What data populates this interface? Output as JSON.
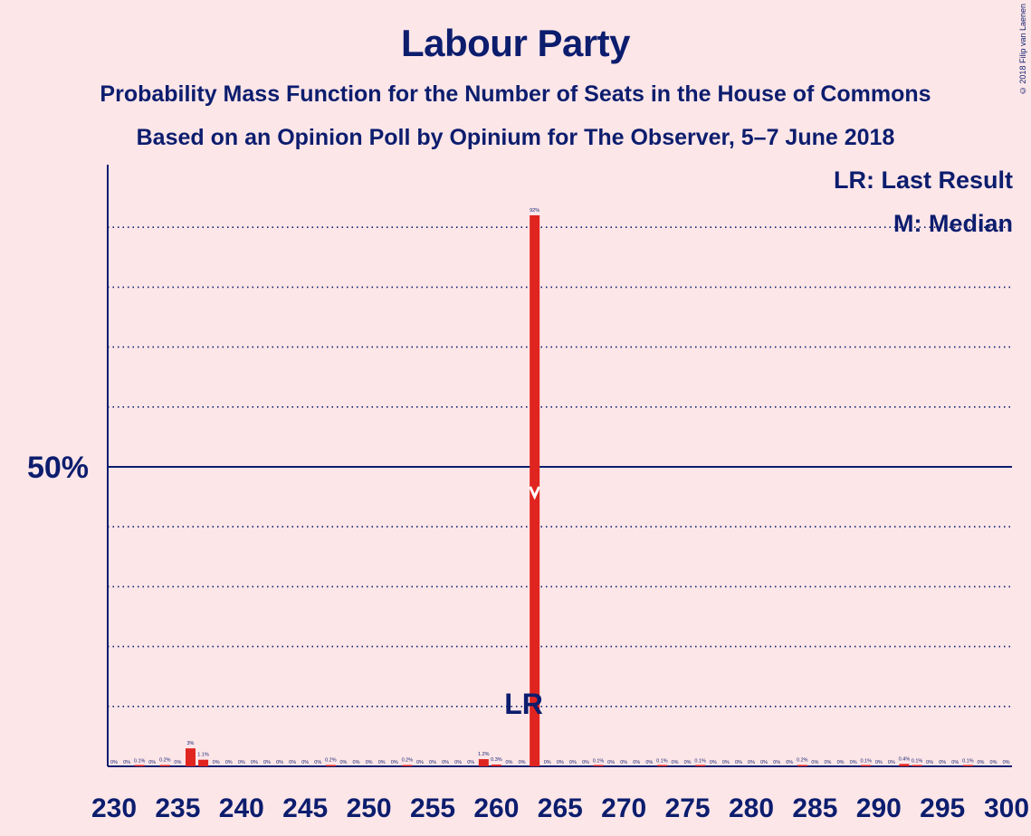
{
  "title": "Labour Party",
  "subtitle1": "Probability Mass Function for the Number of Seats in the House of Commons",
  "subtitle2": "Based on an Opinion Poll by Opinium for The Observer, 5–7 June 2018",
  "copyright": "© 2018 Filip van Laenen",
  "legend": {
    "lr": "LR: Last Result",
    "median": "M: Median"
  },
  "colors": {
    "background": "#fde6e8",
    "text": "#0c1d6e",
    "bar": "#e0241f",
    "median_marker": "#ffffff"
  },
  "chart_data": {
    "type": "bar",
    "title": "Labour Party",
    "xlabel": "",
    "ylabel": "",
    "ylim": [
      0,
      100
    ],
    "y_ticks_labeled": [
      {
        "value": 50,
        "label": "50%"
      }
    ],
    "y_gridlines": [
      10,
      20,
      30,
      40,
      50,
      60,
      70,
      80,
      90
    ],
    "x_ticks": [
      230,
      235,
      240,
      245,
      250,
      255,
      260,
      265,
      270,
      275,
      280,
      285,
      290,
      295,
      300
    ],
    "last_result_seat": 262,
    "last_result_label": "LR",
    "median_seat": 263,
    "median_label": "M",
    "bars": [
      {
        "seat": 230,
        "value": 0,
        "label": "0%"
      },
      {
        "seat": 231,
        "value": 0,
        "label": "0%"
      },
      {
        "seat": 232,
        "value": 0.1,
        "label": "0.1%"
      },
      {
        "seat": 233,
        "value": 0,
        "label": "0%"
      },
      {
        "seat": 234,
        "value": 0.2,
        "label": "0.2%"
      },
      {
        "seat": 235,
        "value": 0,
        "label": "0%"
      },
      {
        "seat": 236,
        "value": 3,
        "label": "3%"
      },
      {
        "seat": 237,
        "value": 1.1,
        "label": "1.1%"
      },
      {
        "seat": 238,
        "value": 0,
        "label": "0%"
      },
      {
        "seat": 239,
        "value": 0,
        "label": "0%"
      },
      {
        "seat": 240,
        "value": 0,
        "label": "0%"
      },
      {
        "seat": 241,
        "value": 0,
        "label": "0%"
      },
      {
        "seat": 242,
        "value": 0,
        "label": "0%"
      },
      {
        "seat": 243,
        "value": 0,
        "label": "0%"
      },
      {
        "seat": 244,
        "value": 0,
        "label": "0%"
      },
      {
        "seat": 245,
        "value": 0,
        "label": "0%"
      },
      {
        "seat": 246,
        "value": 0,
        "label": "0%"
      },
      {
        "seat": 247,
        "value": 0.2,
        "label": "0.2%"
      },
      {
        "seat": 248,
        "value": 0,
        "label": "0%"
      },
      {
        "seat": 249,
        "value": 0,
        "label": "0%"
      },
      {
        "seat": 250,
        "value": 0,
        "label": "0%"
      },
      {
        "seat": 251,
        "value": 0,
        "label": "0%"
      },
      {
        "seat": 252,
        "value": 0,
        "label": "0%"
      },
      {
        "seat": 253,
        "value": 0.2,
        "label": "0.2%"
      },
      {
        "seat": 254,
        "value": 0,
        "label": "0%"
      },
      {
        "seat": 255,
        "value": 0,
        "label": "0%"
      },
      {
        "seat": 256,
        "value": 0,
        "label": "0%"
      },
      {
        "seat": 257,
        "value": 0,
        "label": "0%"
      },
      {
        "seat": 258,
        "value": 0,
        "label": "0%"
      },
      {
        "seat": 259,
        "value": 1.2,
        "label": "1.2%"
      },
      {
        "seat": 260,
        "value": 0.3,
        "label": "0.3%"
      },
      {
        "seat": 261,
        "value": 0,
        "label": "0%"
      },
      {
        "seat": 262,
        "value": 0,
        "label": "0%"
      },
      {
        "seat": 263,
        "value": 92,
        "label": "92%"
      },
      {
        "seat": 264,
        "value": 0,
        "label": "0%"
      },
      {
        "seat": 265,
        "value": 0,
        "label": "0%"
      },
      {
        "seat": 266,
        "value": 0,
        "label": "0%"
      },
      {
        "seat": 267,
        "value": 0,
        "label": "0%"
      },
      {
        "seat": 268,
        "value": 0.1,
        "label": "0.1%"
      },
      {
        "seat": 269,
        "value": 0,
        "label": "0%"
      },
      {
        "seat": 270,
        "value": 0,
        "label": "0%"
      },
      {
        "seat": 271,
        "value": 0,
        "label": "0%"
      },
      {
        "seat": 272,
        "value": 0,
        "label": "0%"
      },
      {
        "seat": 273,
        "value": 0.1,
        "label": "0.1%"
      },
      {
        "seat": 274,
        "value": 0,
        "label": "0%"
      },
      {
        "seat": 275,
        "value": 0,
        "label": "0%"
      },
      {
        "seat": 276,
        "value": 0.1,
        "label": "0.1%"
      },
      {
        "seat": 277,
        "value": 0,
        "label": "0%"
      },
      {
        "seat": 278,
        "value": 0,
        "label": "0%"
      },
      {
        "seat": 279,
        "value": 0,
        "label": "0%"
      },
      {
        "seat": 280,
        "value": 0,
        "label": "0%"
      },
      {
        "seat": 281,
        "value": 0,
        "label": "0%"
      },
      {
        "seat": 282,
        "value": 0,
        "label": "0%"
      },
      {
        "seat": 283,
        "value": 0,
        "label": "0%"
      },
      {
        "seat": 284,
        "value": 0.2,
        "label": "0.2%"
      },
      {
        "seat": 285,
        "value": 0,
        "label": "0%"
      },
      {
        "seat": 286,
        "value": 0,
        "label": "0%"
      },
      {
        "seat": 287,
        "value": 0,
        "label": "0%"
      },
      {
        "seat": 288,
        "value": 0,
        "label": "0%"
      },
      {
        "seat": 289,
        "value": 0.1,
        "label": "0.1%"
      },
      {
        "seat": 290,
        "value": 0,
        "label": "0%"
      },
      {
        "seat": 291,
        "value": 0,
        "label": "0%"
      },
      {
        "seat": 292,
        "value": 0.4,
        "label": "0.4%"
      },
      {
        "seat": 293,
        "value": 0.1,
        "label": "0.1%"
      },
      {
        "seat": 294,
        "value": 0,
        "label": "0%"
      },
      {
        "seat": 295,
        "value": 0,
        "label": "0%"
      },
      {
        "seat": 296,
        "value": 0,
        "label": "0%"
      },
      {
        "seat": 297,
        "value": 0.1,
        "label": "0.1%"
      },
      {
        "seat": 298,
        "value": 0,
        "label": "0%"
      },
      {
        "seat": 299,
        "value": 0,
        "label": "0%"
      },
      {
        "seat": 300,
        "value": 0,
        "label": "0%"
      }
    ]
  }
}
